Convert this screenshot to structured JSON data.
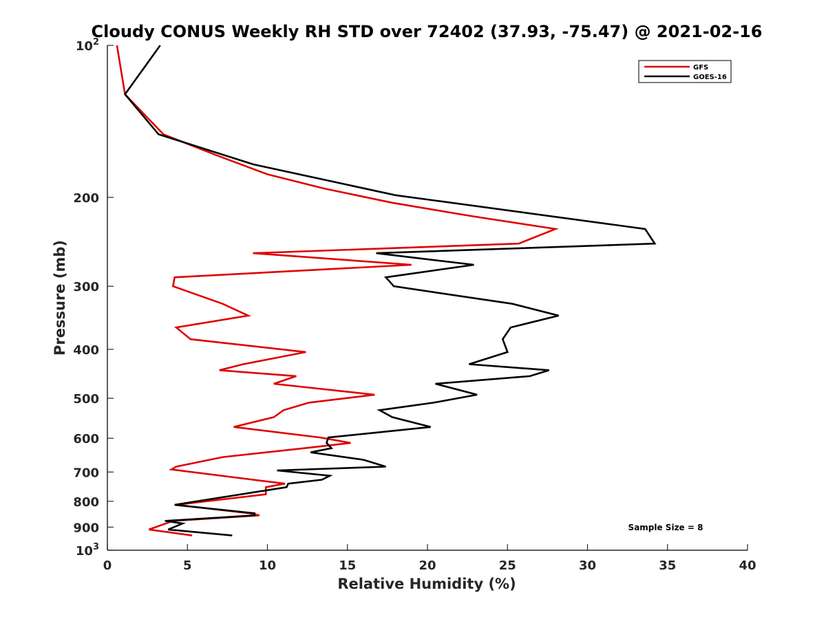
{
  "chart_data": {
    "type": "line",
    "title": "Cloudy CONUS Weekly RH STD over 72402 (37.93, -75.47) @ 2021-02-16",
    "xlabel": "Relative Humidity (%)",
    "ylabel": "Pressure (mb)",
    "xlim": [
      0,
      40
    ],
    "ylim": [
      100,
      1000
    ],
    "y_scale": "log",
    "y_reversed": true,
    "grid": false,
    "legend_position": "top-right",
    "x_ticks": [
      0,
      5,
      10,
      15,
      20,
      25,
      30,
      35,
      40
    ],
    "x_tick_labels": [
      "0",
      "5",
      "10",
      "15",
      "20",
      "25",
      "30",
      "35",
      "40"
    ],
    "y_ticks": [
      {
        "value": 100,
        "base": "10",
        "exp": "2",
        "text": ""
      },
      {
        "value": 200,
        "base": "",
        "exp": "",
        "text": "200"
      },
      {
        "value": 300,
        "base": "",
        "exp": "",
        "text": "300"
      },
      {
        "value": 400,
        "base": "",
        "exp": "",
        "text": "400"
      },
      {
        "value": 500,
        "base": "",
        "exp": "",
        "text": "500"
      },
      {
        "value": 600,
        "base": "",
        "exp": "",
        "text": "600"
      },
      {
        "value": 700,
        "base": "",
        "exp": "",
        "text": "700"
      },
      {
        "value": 800,
        "base": "",
        "exp": "",
        "text": "800"
      },
      {
        "value": 900,
        "base": "",
        "exp": "",
        "text": "900"
      },
      {
        "value": 1000,
        "base": "10",
        "exp": "3",
        "text": ""
      }
    ],
    "annotation": "Sample Size = 8",
    "series": [
      {
        "name": "GFS",
        "color": "#e00000",
        "points": [
          [
            0.6,
            100
          ],
          [
            1.1,
            125
          ],
          [
            3.5,
            150
          ],
          [
            6.8,
            165
          ],
          [
            10,
            180
          ],
          [
            13.5,
            192
          ],
          [
            17.8,
            205
          ],
          [
            22.8,
            218
          ],
          [
            28,
            231
          ],
          [
            25.7,
            247
          ],
          [
            9.1,
            258
          ],
          [
            19,
            272
          ],
          [
            4.2,
            288
          ],
          [
            4.1,
            300
          ],
          [
            7.2,
            325
          ],
          [
            8.8,
            343
          ],
          [
            4.3,
            362
          ],
          [
            5.2,
            382
          ],
          [
            12.4,
            405
          ],
          [
            8.5,
            428
          ],
          [
            7,
            440
          ],
          [
            11.8,
            452
          ],
          [
            10.4,
            468
          ],
          [
            16.7,
            492
          ],
          [
            12.6,
            510
          ],
          [
            11,
            528
          ],
          [
            10.4,
            545
          ],
          [
            7.9,
            570
          ],
          [
            13.3,
            598
          ],
          [
            15.2,
            613
          ],
          [
            12.3,
            628
          ],
          [
            7.2,
            654
          ],
          [
            4.3,
            683
          ],
          [
            4,
            692
          ],
          [
            9.1,
            725
          ],
          [
            11.1,
            738
          ],
          [
            9.9,
            750
          ],
          [
            9.9,
            775
          ],
          [
            4.3,
            813
          ],
          [
            8.9,
            845
          ],
          [
            9.5,
            853
          ],
          [
            4.1,
            875
          ],
          [
            2.6,
            910
          ],
          [
            5.3,
            935
          ]
        ]
      },
      {
        "name": "GOES-16",
        "color": "#000000",
        "points": [
          [
            3.3,
            100
          ],
          [
            1.1,
            125
          ],
          [
            3.2,
            150
          ],
          [
            9.1,
            172
          ],
          [
            18,
            198
          ],
          [
            33.6,
            231
          ],
          [
            34.2,
            247
          ],
          [
            16.8,
            258
          ],
          [
            22.9,
            272
          ],
          [
            17.4,
            288
          ],
          [
            17.9,
            300
          ],
          [
            25.3,
            325
          ],
          [
            28.2,
            343
          ],
          [
            25.2,
            362
          ],
          [
            24.7,
            382
          ],
          [
            25,
            405
          ],
          [
            22.6,
            428
          ],
          [
            27.6,
            440
          ],
          [
            26.4,
            452
          ],
          [
            20.5,
            468
          ],
          [
            23.1,
            492
          ],
          [
            20.4,
            510
          ],
          [
            17,
            528
          ],
          [
            17.8,
            545
          ],
          [
            20.2,
            570
          ],
          [
            13.8,
            598
          ],
          [
            13.7,
            613
          ],
          [
            14,
            628
          ],
          [
            12.7,
            640
          ],
          [
            16,
            662
          ],
          [
            17.4,
            683
          ],
          [
            10.6,
            695
          ],
          [
            13.9,
            712
          ],
          [
            13.4,
            725
          ],
          [
            11.3,
            738
          ],
          [
            11.2,
            750
          ],
          [
            4.2,
            813
          ],
          [
            9.2,
            845
          ],
          [
            9.2,
            853
          ],
          [
            3.6,
            875
          ],
          [
            4.7,
            885
          ],
          [
            3.8,
            910
          ],
          [
            7.8,
            935
          ]
        ]
      }
    ]
  }
}
